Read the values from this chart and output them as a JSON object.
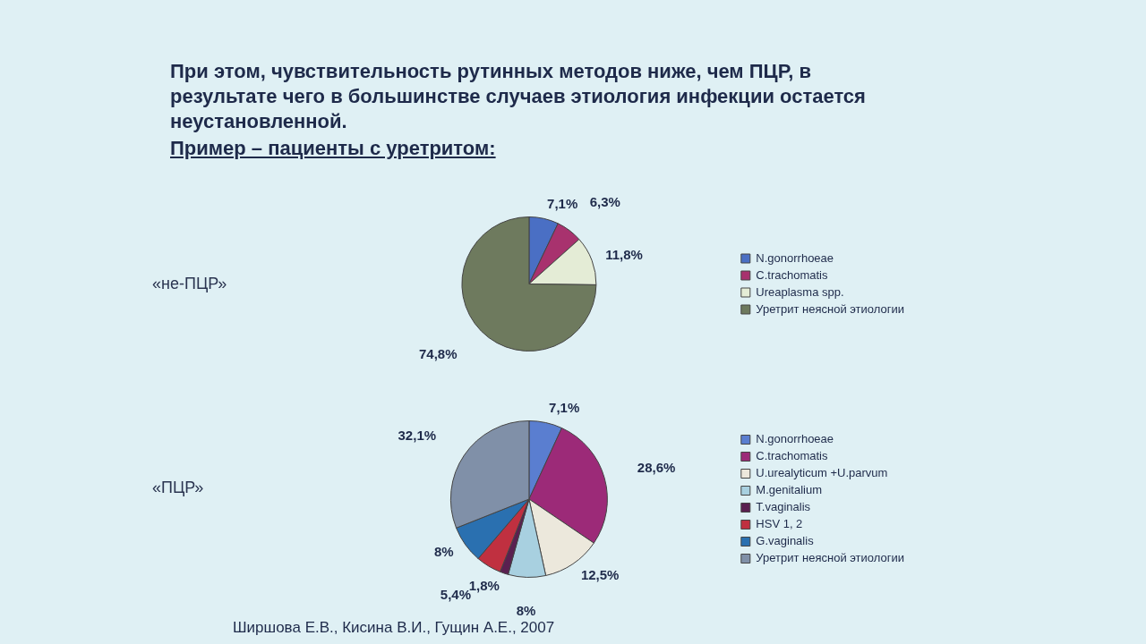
{
  "chart_data": [
    {
      "type": "pie",
      "title": "При этом, чувствительность рутинных методов ниже, чем ПЦР, в результате чего в большинстве случаев этиология инфекции остается неустановленной.",
      "subtitle": "Пример – пациенты с уретритом:",
      "ylabel": "«не-ПЦР»",
      "categories": [
        "N.gonorrhoeae",
        "C.trachomatis",
        "Ureaplasma spp.",
        "Уретрит неясной этиологии"
      ],
      "values": [
        7.1,
        6.3,
        11.8,
        74.8
      ],
      "colors": [
        "#4a6fc4",
        "#a8326e",
        "#e4ecd6",
        "#6e7a5e"
      ],
      "value_labels": [
        "7,1%",
        "6,3%",
        "11,8%",
        "74,8%"
      ],
      "legend": "right"
    },
    {
      "type": "pie",
      "ylabel": "«ПЦР»",
      "categories": [
        "N.gonorrhoeae",
        "C.trachomatis",
        "U.urealyticum +U.parvum",
        "M.genitalium",
        "T.vaginalis",
        "HSV 1, 2",
        "G.vaginalis",
        "Уретрит неясной этиологии"
      ],
      "values": [
        7.1,
        28.6,
        12.5,
        8,
        1.8,
        5.4,
        8,
        32.1
      ],
      "colors": [
        "#5a7ed0",
        "#9c2a78",
        "#ece8dc",
        "#a8d0e0",
        "#5a2050",
        "#c03040",
        "#2a70b0",
        "#8090a8"
      ],
      "value_labels": [
        "7,1%",
        "28,6%",
        "12,5%",
        "8%",
        "1,8%",
        "5,4%",
        "8%",
        "32,1%"
      ],
      "legend": "right",
      "annotations": [
        "Ширшова Е.В., Кисина В.И., Гущин А.Е., 2007"
      ]
    }
  ]
}
